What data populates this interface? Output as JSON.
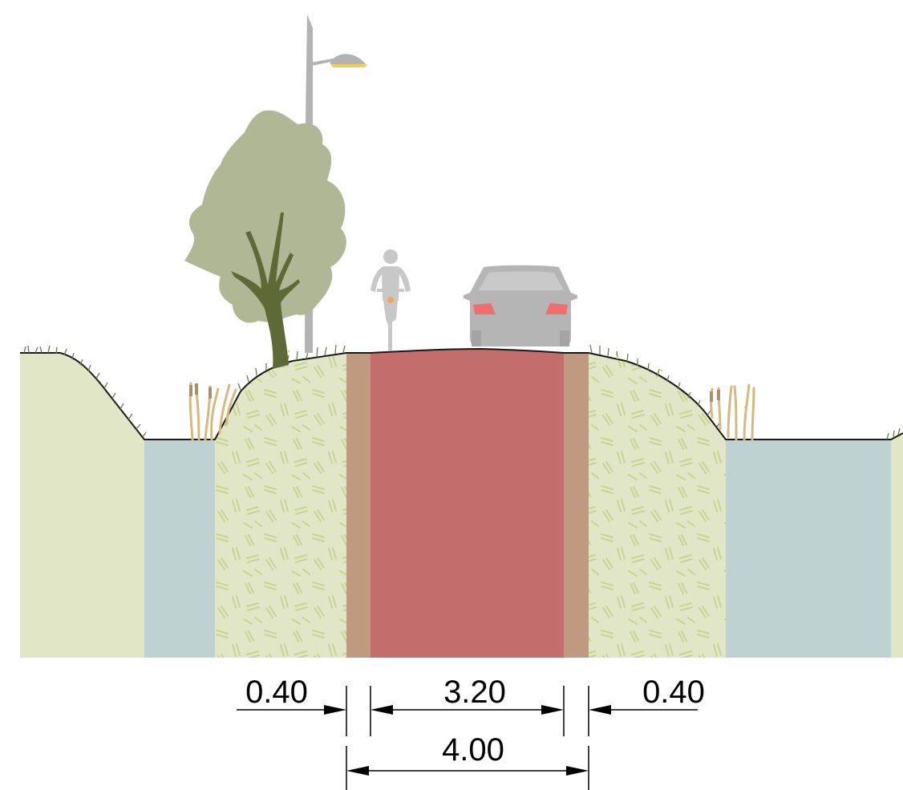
{
  "colors": {
    "background": "#ffffff",
    "field": "#e1e6c6",
    "ditch_water": "#bed2d2",
    "embankment_fill": "#e1e6c6",
    "embankment_hatch": "#c6d592",
    "road_surface": "#c46d6d",
    "verge": "#bf9a80",
    "outline": "#1a1a1a",
    "grass": "#6b7c4a",
    "reeds": "#d6b980",
    "tree_crown": "#b0b794",
    "tree_trunk": "#5e6a36",
    "street_light": "#b3b3b3",
    "lamp_glow": "#f3cd5c",
    "cyclist": "#c8c8c8",
    "car": "#b5b5b5",
    "car_lights": "#f26d6d"
  },
  "icons": [
    "tree-icon",
    "street-light-icon",
    "cyclist-icon",
    "car-icon",
    "reeds-icon"
  ],
  "dimensions": {
    "left_verge": "0.40",
    "carriageway": "3.20",
    "right_verge": "0.40",
    "total_width": "4.00"
  }
}
